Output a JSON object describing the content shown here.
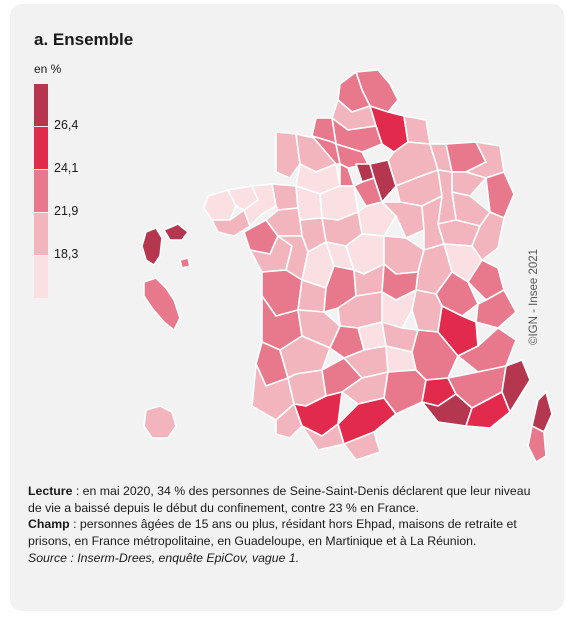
{
  "panel": {
    "title": "a. Ensemble",
    "unit": "en %"
  },
  "legend": {
    "colors": [
      "#b5364f",
      "#e22a4d",
      "#e8788b",
      "#f2b5bd",
      "#fae0e3"
    ],
    "ticks": [
      "26,4",
      "24,1",
      "21,9",
      "18,3"
    ]
  },
  "map": {
    "colors": {
      "c1": "#fae0e3",
      "c2": "#f2b5bd",
      "c3": "#e8788b",
      "c4": "#e22a4d",
      "c5": "#b5364f"
    },
    "copyright": "©IGN - Insee 2021"
  },
  "notes": {
    "lecture_label": "Lecture",
    "lecture_text": " : en mai 2020, 34 % des personnes de Seine-Saint-Denis déclarent que leur niveau de vie a baissé depuis le début du confinement, contre 23 % en France.",
    "champ_label": "Champ",
    "champ_text": " : personnes âgées de 15 ans ou plus, résidant hors Ehpad, maisons de retraite et prisons, en France métropolitaine, en Guadeloupe, en Martinique et à La Réunion.",
    "source": "Source : Inserm-Drees, enquête EpiCov, vague 1."
  }
}
